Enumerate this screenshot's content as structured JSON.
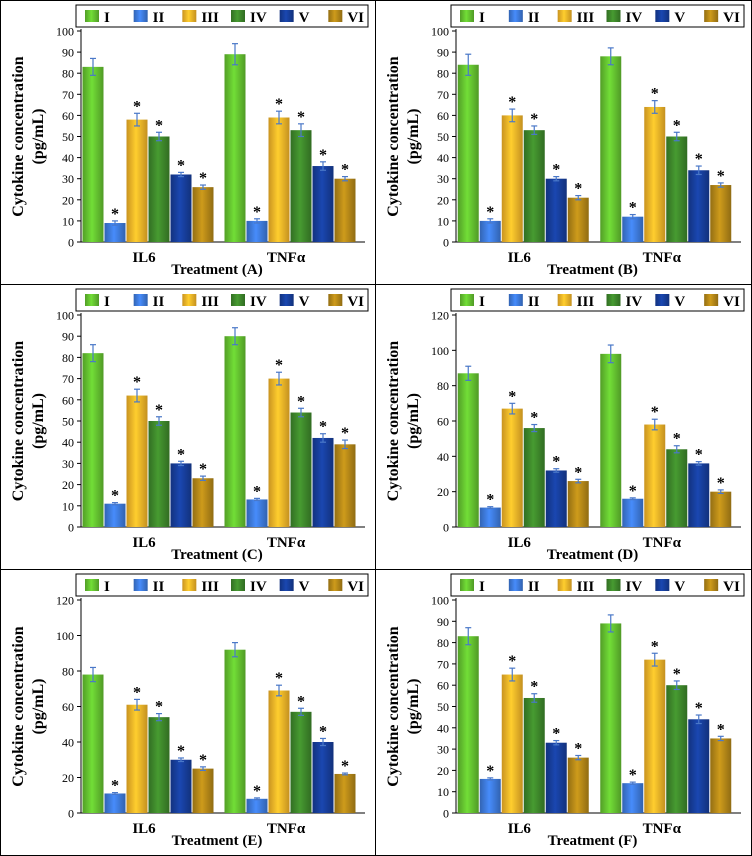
{
  "legend_labels": [
    "I",
    "II",
    "III",
    "IV",
    "V",
    "VI"
  ],
  "series_colors": [
    "#66c631",
    "#3f7de0",
    "#fbb829",
    "#3f8a2c",
    "#173f9e",
    "#b88a18"
  ],
  "chart_data": [
    {
      "type": "bar",
      "title": "",
      "xlabel": "Treatment (A)",
      "ylabel": "Cytokine concentration (pg/mL)",
      "categories": [
        "IL6",
        "TNFα"
      ],
      "ylim": [
        0,
        100
      ],
      "yticks": [
        0,
        10,
        20,
        30,
        40,
        50,
        60,
        70,
        80,
        90,
        100
      ],
      "series": [
        {
          "name": "I",
          "values": [
            83,
            89
          ],
          "errors": [
            4,
            5
          ],
          "significant": [
            false,
            false
          ]
        },
        {
          "name": "II",
          "values": [
            9,
            10
          ],
          "errors": [
            1,
            1
          ],
          "significant": [
            true,
            true
          ]
        },
        {
          "name": "III",
          "values": [
            58,
            59
          ],
          "errors": [
            3,
            3
          ],
          "significant": [
            true,
            true
          ]
        },
        {
          "name": "IV",
          "values": [
            50,
            53
          ],
          "errors": [
            2,
            3
          ],
          "significant": [
            true,
            true
          ]
        },
        {
          "name": "V",
          "values": [
            32,
            36
          ],
          "errors": [
            1,
            2
          ],
          "significant": [
            true,
            true
          ]
        },
        {
          "name": "VI",
          "values": [
            26,
            30
          ],
          "errors": [
            1,
            1
          ],
          "significant": [
            true,
            true
          ]
        }
      ]
    },
    {
      "type": "bar",
      "title": "",
      "xlabel": "Treatment (B)",
      "ylabel": "Cytokine concentration (pg/mL)",
      "categories": [
        "IL6",
        "TNFα"
      ],
      "ylim": [
        0,
        100
      ],
      "yticks": [
        0,
        10,
        20,
        30,
        40,
        50,
        60,
        70,
        80,
        90,
        100
      ],
      "series": [
        {
          "name": "I",
          "values": [
            84,
            88
          ],
          "errors": [
            5,
            4
          ],
          "significant": [
            false,
            false
          ]
        },
        {
          "name": "II",
          "values": [
            10,
            12
          ],
          "errors": [
            1,
            1
          ],
          "significant": [
            true,
            true
          ]
        },
        {
          "name": "III",
          "values": [
            60,
            64
          ],
          "errors": [
            3,
            3
          ],
          "significant": [
            true,
            true
          ]
        },
        {
          "name": "IV",
          "values": [
            53,
            50
          ],
          "errors": [
            2,
            2
          ],
          "significant": [
            true,
            true
          ]
        },
        {
          "name": "V",
          "values": [
            30,
            34
          ],
          "errors": [
            1,
            2
          ],
          "significant": [
            true,
            true
          ]
        },
        {
          "name": "VI",
          "values": [
            21,
            27
          ],
          "errors": [
            1,
            1
          ],
          "significant": [
            true,
            true
          ]
        }
      ]
    },
    {
      "type": "bar",
      "title": "",
      "xlabel": "Treatment (C)",
      "ylabel": "Cytokine concentration (pg/mL)",
      "categories": [
        "IL6",
        "TNFα"
      ],
      "ylim": [
        0,
        100
      ],
      "yticks": [
        0,
        10,
        20,
        30,
        40,
        50,
        60,
        70,
        80,
        90,
        100
      ],
      "series": [
        {
          "name": "I",
          "values": [
            82,
            90
          ],
          "errors": [
            4,
            4
          ],
          "significant": [
            false,
            false
          ]
        },
        {
          "name": "II",
          "values": [
            11,
            13
          ],
          "errors": [
            0.5,
            0.5
          ],
          "significant": [
            true,
            true
          ]
        },
        {
          "name": "III",
          "values": [
            62,
            70
          ],
          "errors": [
            3,
            3
          ],
          "significant": [
            true,
            true
          ]
        },
        {
          "name": "IV",
          "values": [
            50,
            54
          ],
          "errors": [
            2,
            2
          ],
          "significant": [
            true,
            true
          ]
        },
        {
          "name": "V",
          "values": [
            30,
            42
          ],
          "errors": [
            1,
            2
          ],
          "significant": [
            true,
            true
          ]
        },
        {
          "name": "VI",
          "values": [
            23,
            39
          ],
          "errors": [
            1,
            2
          ],
          "significant": [
            true,
            true
          ]
        }
      ]
    },
    {
      "type": "bar",
      "title": "",
      "xlabel": "Treatment (D)",
      "ylabel": "Cytokine concentration (pg/mL)",
      "categories": [
        "IL6",
        "TNFα"
      ],
      "ylim": [
        0,
        120
      ],
      "yticks": [
        0,
        20,
        40,
        60,
        80,
        100,
        120
      ],
      "series": [
        {
          "name": "I",
          "values": [
            87,
            98
          ],
          "errors": [
            4,
            5
          ],
          "significant": [
            false,
            false
          ]
        },
        {
          "name": "II",
          "values": [
            11,
            16
          ],
          "errors": [
            0.5,
            0.5
          ],
          "significant": [
            true,
            true
          ]
        },
        {
          "name": "III",
          "values": [
            67,
            58
          ],
          "errors": [
            3,
            3
          ],
          "significant": [
            true,
            true
          ]
        },
        {
          "name": "IV",
          "values": [
            56,
            44
          ],
          "errors": [
            2,
            2
          ],
          "significant": [
            true,
            true
          ]
        },
        {
          "name": "V",
          "values": [
            32,
            36
          ],
          "errors": [
            1,
            1
          ],
          "significant": [
            true,
            true
          ]
        },
        {
          "name": "VI",
          "values": [
            26,
            20
          ],
          "errors": [
            1,
            1
          ],
          "significant": [
            true,
            true
          ]
        }
      ]
    },
    {
      "type": "bar",
      "title": "",
      "xlabel": "Treatment (E)",
      "ylabel": "Cytokine concentration (pg/mL)",
      "categories": [
        "IL6",
        "TNFα"
      ],
      "ylim": [
        0,
        120
      ],
      "yticks": [
        0,
        20,
        40,
        60,
        80,
        100,
        120
      ],
      "series": [
        {
          "name": "I",
          "values": [
            78,
            92
          ],
          "errors": [
            4,
            4
          ],
          "significant": [
            false,
            false
          ]
        },
        {
          "name": "II",
          "values": [
            11,
            8
          ],
          "errors": [
            0.5,
            0.5
          ],
          "significant": [
            true,
            true
          ]
        },
        {
          "name": "III",
          "values": [
            61,
            69
          ],
          "errors": [
            3,
            3
          ],
          "significant": [
            true,
            true
          ]
        },
        {
          "name": "IV",
          "values": [
            54,
            57
          ],
          "errors": [
            2,
            2
          ],
          "significant": [
            true,
            true
          ]
        },
        {
          "name": "V",
          "values": [
            30,
            40
          ],
          "errors": [
            1,
            2
          ],
          "significant": [
            true,
            true
          ]
        },
        {
          "name": "VI",
          "values": [
            25,
            22
          ],
          "errors": [
            1,
            0.5
          ],
          "significant": [
            true,
            true
          ]
        }
      ]
    },
    {
      "type": "bar",
      "title": "",
      "xlabel": "Treatment (F)",
      "ylabel": "Cytokine concentration (pg/mL)",
      "categories": [
        "IL6",
        "TNFα"
      ],
      "ylim": [
        0,
        100
      ],
      "yticks": [
        0,
        10,
        20,
        30,
        40,
        50,
        60,
        70,
        80,
        90,
        100
      ],
      "series": [
        {
          "name": "I",
          "values": [
            83,
            89
          ],
          "errors": [
            4,
            4
          ],
          "significant": [
            false,
            false
          ]
        },
        {
          "name": "II",
          "values": [
            16,
            14
          ],
          "errors": [
            0.5,
            0.5
          ],
          "significant": [
            true,
            true
          ]
        },
        {
          "name": "III",
          "values": [
            65,
            72
          ],
          "errors": [
            3,
            3
          ],
          "significant": [
            true,
            true
          ]
        },
        {
          "name": "IV",
          "values": [
            54,
            60
          ],
          "errors": [
            2,
            2
          ],
          "significant": [
            true,
            true
          ]
        },
        {
          "name": "V",
          "values": [
            33,
            44
          ],
          "errors": [
            1,
            2
          ],
          "significant": [
            true,
            true
          ]
        },
        {
          "name": "VI",
          "values": [
            26,
            35
          ],
          "errors": [
            1,
            1
          ],
          "significant": [
            true,
            true
          ]
        }
      ]
    }
  ]
}
